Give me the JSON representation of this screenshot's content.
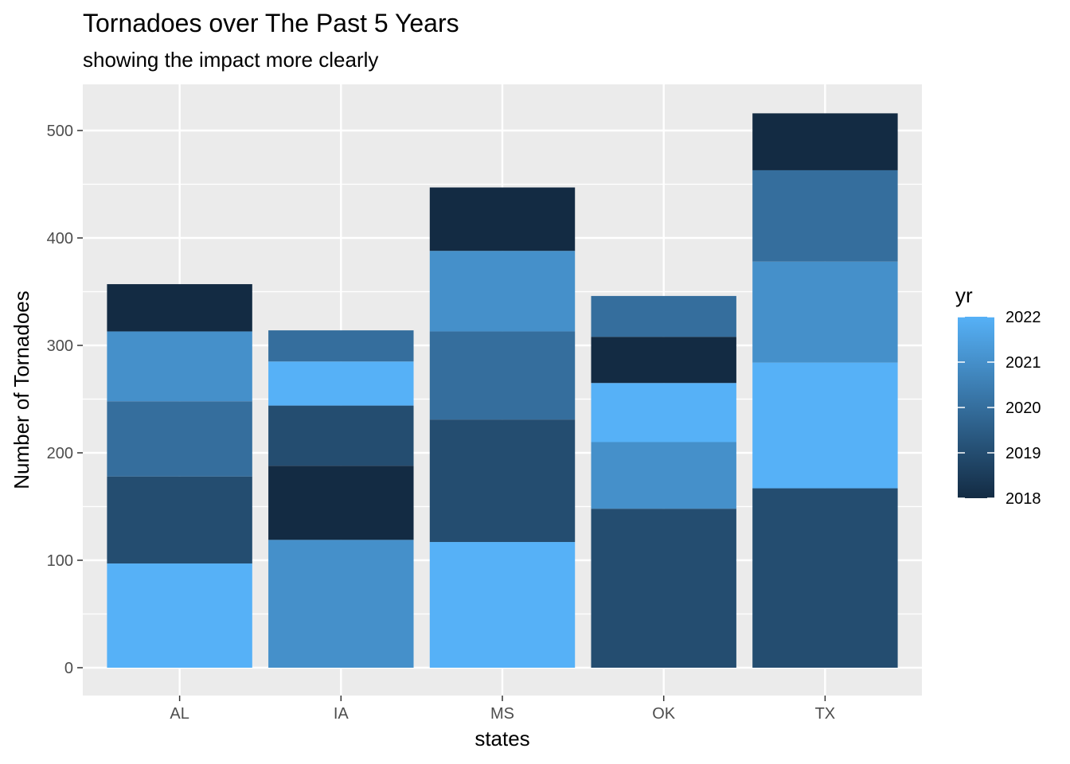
{
  "chart_data": {
    "type": "bar",
    "stacked": true,
    "title": "Tornadoes over The Past 5 Years",
    "subtitle": "showing the impact more clearly",
    "xlabel": "states",
    "ylabel": "Number of Tornadoes",
    "categories": [
      "AL",
      "IA",
      "MS",
      "OK",
      "TX"
    ],
    "ylim": [
      0,
      540
    ],
    "yticks": [
      0,
      100,
      200,
      300,
      400,
      500
    ],
    "grid": true,
    "legend": {
      "title": "yr",
      "position": "right",
      "type": "colorbar",
      "range": [
        2018,
        2022
      ],
      "ticks": [
        2022,
        2021,
        2020,
        2019,
        2018
      ],
      "colors": {
        "low": "#132B43",
        "high": "#56B1F7"
      }
    },
    "stacks": [
      {
        "category": "AL",
        "segments": [
          {
            "yr": 2022,
            "value": 97
          },
          {
            "yr": 2019,
            "value": 81
          },
          {
            "yr": 2020,
            "value": 70
          },
          {
            "yr": 2021,
            "value": 65
          },
          {
            "yr": 2018,
            "value": 44
          }
        ]
      },
      {
        "category": "IA",
        "segments": [
          {
            "yr": 2021,
            "value": 119
          },
          {
            "yr": 2018,
            "value": 69
          },
          {
            "yr": 2019,
            "value": 56
          },
          {
            "yr": 2022,
            "value": 41
          },
          {
            "yr": 2020,
            "value": 29
          }
        ]
      },
      {
        "category": "MS",
        "segments": [
          {
            "yr": 2022,
            "value": 117
          },
          {
            "yr": 2019,
            "value": 114
          },
          {
            "yr": 2020,
            "value": 82
          },
          {
            "yr": 2021,
            "value": 75
          },
          {
            "yr": 2018,
            "value": 59
          }
        ]
      },
      {
        "category": "OK",
        "segments": [
          {
            "yr": 2019,
            "value": 148
          },
          {
            "yr": 2021,
            "value": 62
          },
          {
            "yr": 2022,
            "value": 55
          },
          {
            "yr": 2018,
            "value": 43
          },
          {
            "yr": 2020,
            "value": 38
          }
        ]
      },
      {
        "category": "TX",
        "segments": [
          {
            "yr": 2019,
            "value": 167
          },
          {
            "yr": 2022,
            "value": 117
          },
          {
            "yr": 2021,
            "value": 94
          },
          {
            "yr": 2020,
            "value": 85
          },
          {
            "yr": 2018,
            "value": 53
          }
        ]
      }
    ]
  }
}
